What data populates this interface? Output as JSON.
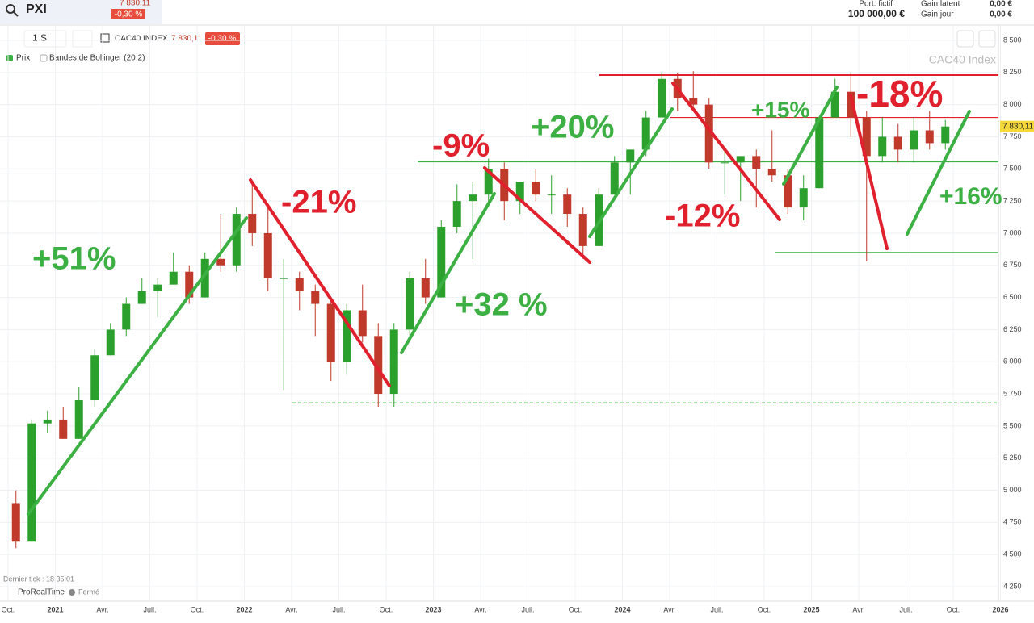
{
  "header": {
    "symbol": "PXI",
    "price": "7 830,11",
    "change": "-0,30 %",
    "portfolio_label": "Port. fictif",
    "portfolio_value": "100 000,00 €",
    "gain_latent_label": "Gain latent",
    "gain_jour_label": "Gain jour",
    "gain_latent": "0,00 €",
    "gain_jour": "0,00 €"
  },
  "toolbar": {
    "period": "1 S",
    "instrument": "CAC40 INDEX",
    "price": "7 830,11",
    "change": "-0.30 %",
    "legend_price": "Prix",
    "legend_bollinger": "Bandes de Bollinger (20 2)"
  },
  "footer": {
    "last_tick": "Dernier tick : 18:35:01",
    "brand": "ProRealTime",
    "status": "Fermé"
  },
  "chart_data": {
    "type": "candlestick",
    "watermark": "CAC40 Index",
    "grid": true,
    "categories": [
      "Oct.",
      null,
      null,
      "2021",
      null,
      null,
      "Avr.",
      null,
      null,
      "Juil.",
      null,
      null,
      "Oct.",
      null,
      null,
      "2022",
      null,
      null,
      "Avr.",
      null,
      null,
      "Juil.",
      null,
      null,
      "Oct.",
      null,
      null,
      "2023",
      null,
      null,
      "Avr.",
      null,
      null,
      "Juil.",
      null,
      null,
      "Oct.",
      null,
      null,
      "2024",
      null,
      null,
      "Avr.",
      null,
      null,
      "Juil.",
      null,
      null,
      "Oct.",
      null,
      null,
      "2025",
      null,
      null,
      "Avr.",
      null,
      null,
      "Juil.",
      null,
      null,
      "Oct.",
      null,
      null,
      "2026"
    ],
    "open": [
      4900,
      4600,
      5520,
      5550,
      5400,
      5700,
      6050,
      6250,
      6450,
      6550,
      6600,
      6700,
      6500,
      6800,
      6750,
      7150,
      7000,
      6650,
      6650,
      6550,
      6450,
      6000,
      6400,
      6200,
      5750,
      6250,
      6650,
      6500,
      7050,
      7250,
      7300,
      7500,
      7250,
      7400,
      7300,
      7300,
      7150,
      6900,
      7300,
      7550,
      7650,
      7900,
      8200,
      8050,
      8000,
      7550,
      7550,
      7600,
      7500,
      7450,
      7200,
      7350,
      7900,
      8100,
      7900,
      7600,
      7750,
      7650,
      7800,
      7700,
      null,
      null,
      null,
      null
    ],
    "high": [
      5000,
      5550,
      5620,
      5650,
      5800,
      6100,
      6300,
      6500,
      6650,
      6650,
      6850,
      6750,
      6850,
      7150,
      7200,
      7380,
      7200,
      6800,
      6700,
      6600,
      6500,
      6450,
      6600,
      6300,
      6300,
      6700,
      6800,
      7100,
      7380,
      7400,
      7580,
      7550,
      7400,
      7500,
      7450,
      7350,
      7200,
      7350,
      7600,
      7650,
      7950,
      8250,
      8250,
      8260,
      8050,
      7650,
      7600,
      7650,
      7800,
      7500,
      7450,
      7900,
      8200,
      8250,
      7950,
      7900,
      7850,
      7900,
      7950,
      7880,
      null,
      null,
      null,
      null
    ],
    "low": [
      4550,
      4600,
      5450,
      5400,
      5400,
      5650,
      6050,
      6200,
      6450,
      6350,
      6600,
      6450,
      6500,
      6700,
      6700,
      6900,
      6550,
      5780,
      6400,
      6200,
      5850,
      5900,
      6150,
      5650,
      5650,
      6200,
      6450,
      6500,
      7000,
      6800,
      7250,
      7100,
      7150,
      7250,
      7150,
      7050,
      6800,
      6900,
      7300,
      7300,
      7600,
      7900,
      7950,
      7950,
      7500,
      7300,
      7250,
      7200,
      7400,
      7150,
      7100,
      7350,
      7900,
      7750,
      6780,
      7550,
      7550,
      7550,
      7650,
      7650,
      null,
      null,
      null,
      null
    ],
    "close": [
      4600,
      5520,
      5550,
      5400,
      5700,
      6050,
      6250,
      6450,
      6550,
      6600,
      6700,
      6500,
      6800,
      6750,
      7150,
      7000,
      6650,
      6650,
      6550,
      6450,
      6000,
      6400,
      6200,
      5750,
      6250,
      6650,
      6500,
      7050,
      7250,
      7300,
      7500,
      7250,
      7400,
      7300,
      7300,
      7150,
      6900,
      7300,
      7550,
      7650,
      7900,
      8200,
      8050,
      8000,
      7550,
      7550,
      7600,
      7500,
      7450,
      7200,
      7350,
      7900,
      8100,
      7900,
      7600,
      7750,
      7650,
      7800,
      7700,
      7830,
      null,
      null,
      null,
      null
    ],
    "up_color": "#2ca02c",
    "down_color": "#c0392b",
    "ylim": [
      4150,
      8580
    ],
    "yticks": [
      {
        "value": 4250,
        "label": "4 250"
      },
      {
        "value": 4500,
        "label": "4 500"
      },
      {
        "value": 4750,
        "label": "4 750"
      },
      {
        "value": 5000,
        "label": "5 000"
      },
      {
        "value": 5250,
        "label": "5 250"
      },
      {
        "value": 5500,
        "label": "5 500"
      },
      {
        "value": 5750,
        "label": "5 750"
      },
      {
        "value": 6000,
        "label": "6 000"
      },
      {
        "value": 6250,
        "label": "6 250"
      },
      {
        "value": 6500,
        "label": "6 500"
      },
      {
        "value": 6750,
        "label": "6 750"
      },
      {
        "value": 7000,
        "label": "7 000"
      },
      {
        "value": 7250,
        "label": "7 250"
      },
      {
        "value": 7500,
        "label": "7 500"
      },
      {
        "value": 7750,
        "label": "7 750"
      },
      {
        "value": 8000,
        "label": "8 000"
      },
      {
        "value": 8250,
        "label": "8 250"
      },
      {
        "value": 8500,
        "label": "8 500"
      }
    ],
    "last_price": {
      "value": 7830.11,
      "label": "7 830,11"
    },
    "levels": [
      {
        "value": 8230,
        "color": "#e0202c"
      },
      {
        "value": 7900,
        "color": "#e0202c"
      },
      {
        "value": 7555,
        "color": "#3cb043"
      },
      {
        "value": 6850,
        "color": "#3cb043"
      },
      {
        "value": 5680,
        "color": "#3cb043"
      }
    ],
    "annotations": [
      {
        "text": "+51%",
        "color": "#3cb043"
      },
      {
        "text": "-21%",
        "color": "#e0202c"
      },
      {
        "text": "+32 %",
        "color": "#3cb043"
      },
      {
        "text": "-9%",
        "color": "#e0202c"
      },
      {
        "text": "+20%",
        "color": "#3cb043"
      },
      {
        "text": "+15%",
        "color": "#3cb043"
      },
      {
        "text": "-18%",
        "color": "#e0202c"
      },
      {
        "text": "-12%",
        "color": "#e0202c"
      },
      {
        "text": "+16%",
        "color": "#3cb043"
      }
    ]
  }
}
